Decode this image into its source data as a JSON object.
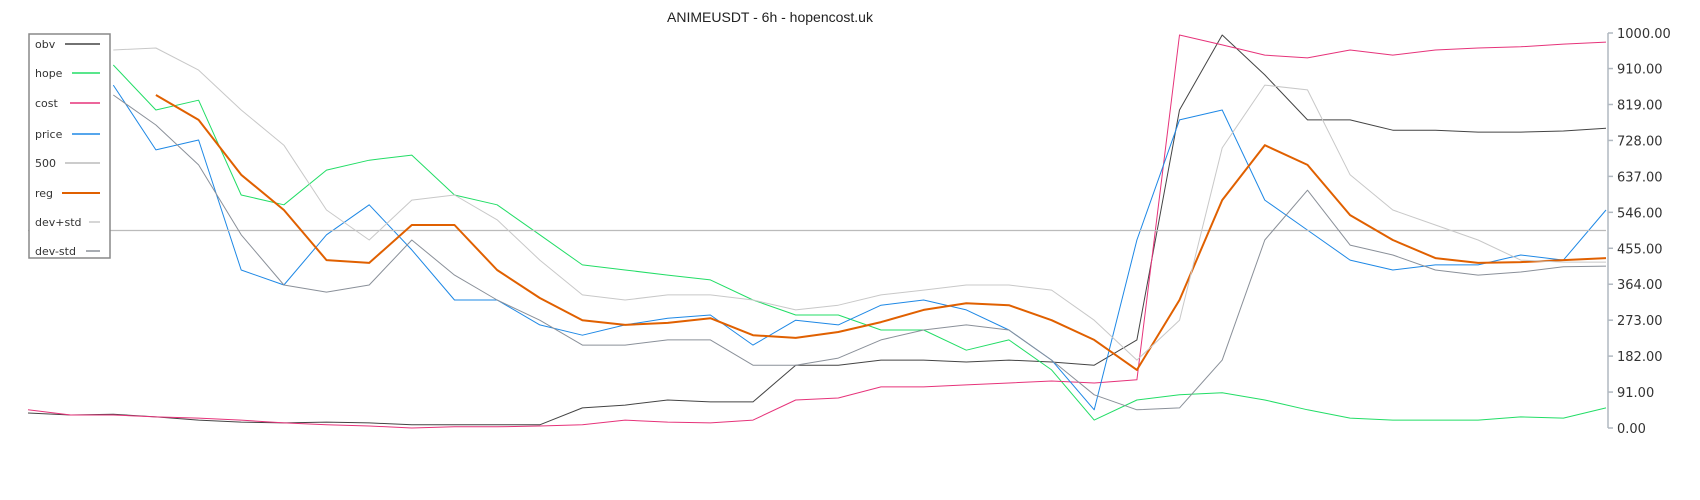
{
  "chart_data": {
    "type": "line",
    "title": "ANIMEUSDT - 6h - hopencost.uk",
    "ylim": [
      0,
      1000
    ],
    "yticks": [
      "0.00",
      "91.00",
      "182.00",
      "273.00",
      "364.00",
      "455.00",
      "546.00",
      "637.00",
      "728.00",
      "819.00",
      "910.00",
      "1000.00"
    ],
    "ytick_values": [
      0,
      91,
      182,
      273,
      364,
      455,
      546,
      637,
      728,
      819,
      910,
      1000
    ],
    "yaxis_side": "right",
    "grid": false,
    "legend_placement": "top-left",
    "reference_line": 500,
    "series": [
      {
        "name": "obv",
        "color": "#444444",
        "width": 1,
        "values": [
          38,
          33,
          35,
          28,
          20,
          15,
          13,
          15,
          13,
          8,
          8,
          8,
          8,
          51,
          58,
          71,
          66,
          66,
          159,
          159,
          172,
          172,
          167,
          172,
          167,
          159,
          223,
          805,
          995,
          894,
          780,
          780,
          754,
          754,
          749,
          749,
          752,
          759
        ]
      },
      {
        "name": "hope",
        "color": "#22dd66",
        "width": 1,
        "values": [
          null,
          null,
          919,
          805,
          830,
          590,
          565,
          653,
          678,
          691,
          590,
          565,
          489,
          413,
          400,
          387,
          375,
          324,
          286,
          286,
          248,
          248,
          197,
          223,
          147,
          20,
          71,
          84,
          89,
          71,
          46,
          25,
          20,
          20,
          20,
          28,
          25,
          51
        ]
      },
      {
        "name": "cost",
        "color": "#e6337a",
        "width": 1,
        "values": [
          46,
          33,
          33,
          28,
          25,
          20,
          13,
          8,
          5,
          0,
          3,
          3,
          5,
          8,
          20,
          15,
          13,
          20,
          71,
          76,
          104,
          104,
          109,
          114,
          119,
          114,
          122,
          995,
          970,
          944,
          937,
          957,
          944,
          957,
          962,
          965,
          972,
          977
        ]
      },
      {
        "name": "price",
        "color": "#1e88e5",
        "width": 1,
        "values": [
          null,
          null,
          868,
          704,
          729,
          400,
          362,
          489,
          565,
          451,
          324,
          324,
          261,
          235,
          261,
          278,
          286,
          210,
          273,
          261,
          311,
          324,
          299,
          248,
          172,
          46,
          476,
          780,
          805,
          577,
          501,
          425,
          400,
          413,
          413,
          438,
          425,
          552
        ]
      },
      {
        "name": "500",
        "color": "#bbbbbb",
        "width": 1.2,
        "values": [
          500,
          500,
          500,
          500,
          500,
          500,
          500,
          500,
          500,
          500,
          500,
          500,
          500,
          500,
          500,
          500,
          500,
          500,
          500,
          500,
          500,
          500,
          500,
          500,
          500,
          500,
          500,
          500,
          500,
          500,
          500,
          500,
          500,
          500,
          500,
          500,
          500,
          500
        ]
      },
      {
        "name": "reg",
        "color": "#e06000",
        "width": 2,
        "values": [
          null,
          null,
          null,
          843,
          780,
          641,
          552,
          425,
          418,
          514,
          514,
          400,
          329,
          273,
          261,
          266,
          278,
          235,
          228,
          243,
          268,
          299,
          316,
          311,
          273,
          223,
          147,
          324,
          577,
          716,
          666,
          539,
          476,
          430,
          418,
          420,
          425,
          430
        ]
      },
      {
        "name": "dev+std",
        "color": "#c8c8c8",
        "width": 1,
        "values": [
          null,
          null,
          957,
          962,
          906,
          805,
          716,
          552,
          476,
          577,
          590,
          527,
          425,
          337,
          324,
          337,
          337,
          324,
          299,
          311,
          337,
          349,
          362,
          362,
          349,
          273,
          172,
          273,
          709,
          868,
          856,
          641,
          552,
          514,
          476,
          425,
          420,
          420
        ]
      },
      {
        "name": "dev-std",
        "color": "#8a9099",
        "width": 1,
        "values": [
          null,
          null,
          843,
          767,
          666,
          489,
          362,
          344,
          362,
          476,
          387,
          324,
          273,
          210,
          210,
          223,
          223,
          159,
          159,
          177,
          223,
          248,
          261,
          248,
          172,
          84,
          46,
          51,
          172,
          476,
          602,
          463,
          438,
          400,
          387,
          395,
          408,
          410
        ]
      }
    ]
  }
}
